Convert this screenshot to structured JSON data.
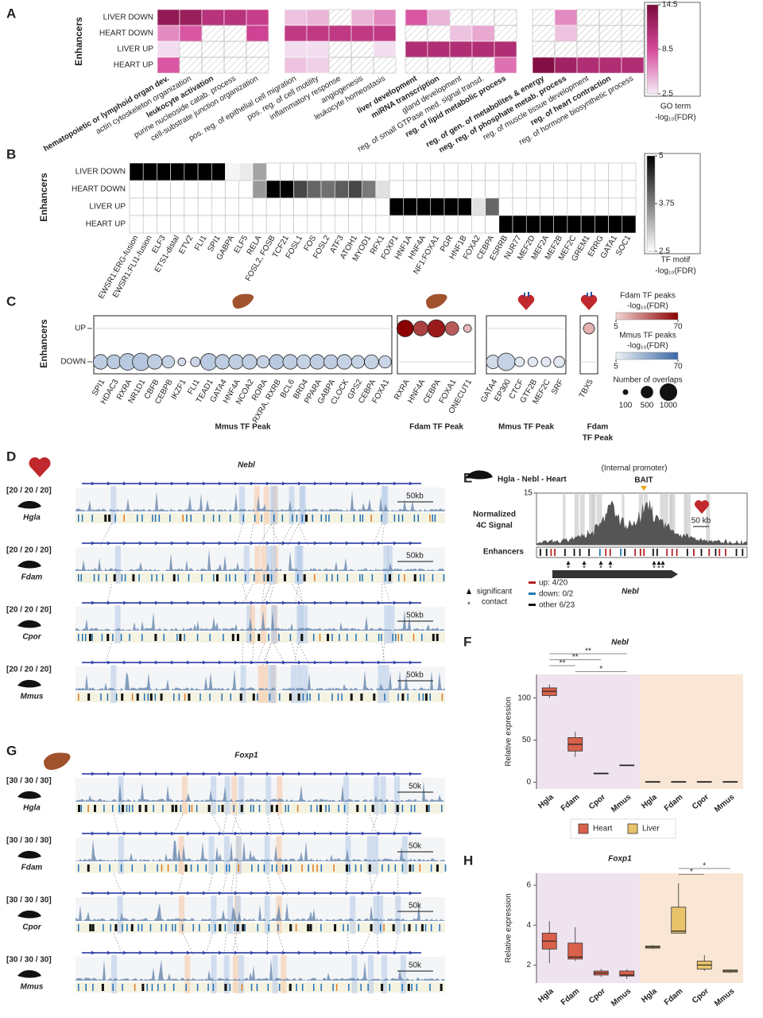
{
  "panel_labels": [
    "A",
    "B",
    "C",
    "D",
    "E",
    "F",
    "G",
    "H"
  ],
  "chart_data": [
    {
      "type": "heatmap",
      "y_label": "Enhancers",
      "rows": [
        "LIVER DOWN",
        "HEART DOWN",
        "LIVER UP",
        "HEART UP"
      ],
      "column_groups": [
        [
          "hematopoietic or lymphoid organ dev.",
          "actin cytoskeleton organization",
          "leukocyte activation",
          "purine nucleoside catab. process",
          "cell-substrate junction organization"
        ],
        [
          "pos. reg. of epithelial cell migration",
          "pos. reg. of cell motility",
          "inflammatory response",
          "angiogenesis",
          "leukocyte homeostasis"
        ],
        [
          "liver development",
          "miRNA transcription",
          "gland development",
          "reg. of small GTPase med. signal transd.",
          "reg. of lipid metabolic process"
        ],
        [
          "reg. of gen. of metabolites & energy",
          "neg. reg. of phosphate metab. process",
          "reg. of muscle tissue development",
          "reg. of heart contraction",
          "reg. of hormone biosynthetic process"
        ]
      ],
      "bold": [
        [
          true,
          false,
          true,
          false,
          false
        ],
        [
          false,
          false,
          false,
          false,
          false
        ],
        [
          true,
          true,
          false,
          false,
          true
        ],
        [
          true,
          true,
          false,
          true,
          false
        ]
      ],
      "values": [
        [
          13,
          12.5,
          10.5,
          10.5,
          9.5,
          4,
          4.5,
          null,
          4.5,
          6,
          8,
          4.5,
          null,
          null,
          null,
          null,
          6,
          null,
          null,
          null
        ],
        [
          6,
          8,
          null,
          null,
          9,
          10,
          10,
          10,
          10,
          10,
          null,
          null,
          4,
          5,
          null,
          null,
          4,
          null,
          null,
          null
        ],
        [
          3,
          null,
          null,
          null,
          null,
          3,
          3,
          null,
          null,
          3,
          11,
          11,
          11,
          11,
          11,
          null,
          null,
          null,
          null,
          null
        ],
        [
          8,
          null,
          null,
          null,
          null,
          4,
          3.5,
          null,
          null,
          null,
          null,
          null,
          null,
          null,
          7,
          14,
          12,
          11,
          11,
          11
        ]
      ],
      "colorbar": {
        "lim": [
          2.5,
          14.5
        ],
        "ticks": [
          14.5,
          8.5,
          2.5
        ],
        "colors": [
          "#f4ecf6",
          "#d6489b",
          "#7a0a3c"
        ],
        "label": [
          "GO term",
          "-log₁₀(FDR)"
        ]
      },
      "hatch_missing": true
    },
    {
      "type": "heatmap",
      "y_label": "Enhancers",
      "rows": [
        "LIVER DOWN",
        "HEART DOWN",
        "LIVER UP",
        "HEART UP"
      ],
      "column_groups": [
        [
          "EWSR1:ERG-fusion",
          "EWSR1:FLI1-fusion",
          "ELF3",
          "ETS1-distal",
          "ETV2",
          "FLI1",
          "SPI1",
          "GABPA",
          "ELF5",
          "RELA",
          "FOSL2, FOSB",
          "TCF21",
          "FOSL1",
          "FOS",
          "FOSL2",
          "ATF3",
          "ATOH1",
          "MYOD1",
          "RFX1",
          "FOXP1",
          "HNF1A",
          "HNF4A",
          "NF1:FOXA1",
          "PGR",
          "HNF1B",
          "FOXA2",
          "CEBPA",
          "ESRRB",
          "NUR77",
          "MEF2D",
          "MEF2A",
          "MEF2B",
          "MEF2C",
          "GREM1",
          "ERRG",
          "GATA1",
          "SOC1"
        ]
      ],
      "values": [
        [
          5,
          5,
          5,
          5,
          5,
          5,
          5,
          2.6,
          2.7,
          3.4,
          null,
          null,
          null,
          null,
          null,
          null,
          null,
          null,
          null,
          null,
          null,
          null,
          null,
          null,
          null,
          null,
          null,
          null,
          null,
          null,
          null,
          null,
          null,
          null,
          null,
          null,
          null
        ],
        [
          null,
          null,
          null,
          null,
          null,
          null,
          null,
          null,
          null,
          3.5,
          5,
          5,
          4.3,
          4,
          3.9,
          4.1,
          4.3,
          3.8,
          2.8,
          null,
          null,
          null,
          null,
          null,
          null,
          null,
          null,
          null,
          null,
          null,
          null,
          null,
          null,
          null,
          null,
          null,
          null
        ],
        [
          null,
          null,
          null,
          null,
          null,
          null,
          null,
          null,
          null,
          null,
          null,
          null,
          null,
          null,
          null,
          null,
          null,
          null,
          null,
          5,
          5,
          5,
          5,
          5,
          5,
          2.8,
          4,
          null,
          null,
          null,
          null,
          null,
          null,
          null,
          null,
          null,
          null
        ],
        [
          null,
          null,
          null,
          null,
          null,
          null,
          null,
          null,
          null,
          null,
          null,
          null,
          null,
          null,
          null,
          null,
          null,
          null,
          null,
          null,
          null,
          null,
          null,
          null,
          null,
          null,
          null,
          5,
          5,
          5,
          5,
          5,
          5,
          5,
          5,
          5,
          5
        ]
      ],
      "colorbar": {
        "lim": [
          2.5,
          5
        ],
        "ticks": [
          5,
          3.75,
          2.5
        ],
        "colors": [
          "#ffffff",
          "#000000"
        ],
        "label": [
          "TF motif",
          "-log₁₀(FDR)"
        ]
      },
      "hatch_missing": false
    },
    {
      "type": "bubble",
      "y_label": "Enhancers",
      "y_categories": [
        "UP",
        "DOWN"
      ],
      "groups": [
        {
          "title": [
            "Mmus TF Peak"
          ],
          "icon": "liver",
          "row": "DOWN",
          "colors": [
            "#eef2f7",
            "#3a66a6"
          ],
          "labels": [
            "SPI1",
            "HDAC3",
            "RXRA",
            "NR1D1",
            "CBFB",
            "CEBPB",
            "IKZF1",
            "FLI1",
            "TEAD1",
            "GATA4",
            "HNF4A",
            "NCOA2",
            "RORA",
            "RXRA, RXRB",
            "BCL6",
            "BRD4",
            "PPARA",
            "GABPA",
            "CLOCK",
            "GPS2",
            "CEBPA",
            "FOXA1"
          ],
          "fdr": [
            22,
            24,
            24,
            26,
            22,
            20,
            16,
            18,
            24,
            22,
            22,
            22,
            20,
            24,
            22,
            20,
            22,
            22,
            20,
            20,
            20,
            18
          ],
          "overlaps": [
            700,
            650,
            900,
            1000,
            700,
            500,
            200,
            300,
            900,
            700,
            700,
            700,
            500,
            700,
            700,
            650,
            700,
            650,
            700,
            550,
            650,
            500
          ]
        },
        {
          "title": [
            "Fdam TF Peak"
          ],
          "icon": "liver",
          "row": "UP",
          "colors": [
            "#f6d4d4",
            "#8b0000"
          ],
          "labels": [
            "RXRA",
            "HNF4A",
            "CEBPA",
            "FOXA1",
            "ONECUT1"
          ],
          "fdr": [
            70,
            50,
            62,
            42,
            14
          ],
          "overlaps": [
            900,
            700,
            1000,
            600,
            200
          ]
        },
        {
          "title": [
            "Mmus TF Peak"
          ],
          "icon": "heart",
          "row": "DOWN",
          "colors": [
            "#eef2f7",
            "#3a66a6"
          ],
          "labels": [
            "GATA4",
            "EP300",
            "CTCF",
            "GTF2B",
            "MEF2C",
            "SRF"
          ],
          "fdr": [
            16,
            20,
            10,
            10,
            10,
            10
          ],
          "overlaps": [
            600,
            1000,
            300,
            300,
            300,
            400
          ]
        },
        {
          "title": [
            "Fdam",
            "TF Peak"
          ],
          "icon": "heart",
          "row": "UP",
          "colors": [
            "#f6d4d4",
            "#8b0000"
          ],
          "labels": [
            "TBX5"
          ],
          "fdr": [
            16
          ],
          "overlaps": [
            400
          ]
        }
      ],
      "color_legends": [
        {
          "title": [
            "Fdam TF peaks",
            "-log₁₀(FDR)"
          ],
          "lim": [
            5,
            70
          ],
          "colors": [
            "#f6d4d4",
            "#8b0000"
          ]
        },
        {
          "title": [
            "Mmus TF peaks",
            "-log₁₀(FDR)"
          ],
          "lim": [
            5,
            70
          ],
          "colors": [
            "#eef2f7",
            "#3a66a6"
          ]
        }
      ],
      "size_legend": {
        "title": "Number of overlaps",
        "values": [
          100,
          500,
          1000
        ]
      }
    },
    {
      "type": "boxplot",
      "title": "Nebl",
      "y_label": "Relative expression",
      "categories": [
        "Hgla",
        "Fdam",
        "Cpor",
        "Mmus"
      ],
      "ylim": [
        -8,
        128
      ],
      "yticks": [
        0,
        50,
        100
      ],
      "series": [
        {
          "name": "Heart",
          "color": "#d9604a",
          "background": "#efe3f0",
          "min": [
            100,
            30,
            10,
            19.5
          ],
          "q1": [
            103,
            37,
            10,
            19.8
          ],
          "median": [
            108,
            45,
            10.5,
            20
          ],
          "q3": [
            112,
            53,
            10.8,
            20.5
          ],
          "max": [
            116,
            60,
            11,
            21
          ]
        },
        {
          "name": "Liver",
          "color": "#e8c36a",
          "background": "#f9e6d4",
          "min": [
            0,
            0,
            0,
            0
          ],
          "q1": [
            0.2,
            0.2,
            0.2,
            0.2
          ],
          "median": [
            0.5,
            0.5,
            0.5,
            0.5
          ],
          "q3": [
            0.8,
            0.8,
            0.8,
            0.8
          ],
          "max": [
            1,
            1,
            1,
            1
          ]
        }
      ],
      "significance": [
        "**",
        "**",
        "**",
        "*"
      ],
      "legend": true
    },
    {
      "type": "boxplot",
      "title": "Foxp1",
      "y_label": "Relative expression",
      "categories": [
        "Hgla",
        "Fdam",
        "Cpor",
        "Mmus"
      ],
      "ylim": [
        1.1,
        6.6
      ],
      "yticks": [
        2,
        4,
        6
      ],
      "series": [
        {
          "name": "Heart",
          "color": "#d9604a",
          "background": "#efe3f0",
          "min": [
            2.1,
            2.2,
            1.4,
            1.3
          ],
          "q1": [
            2.8,
            2.3,
            1.5,
            1.45
          ],
          "median": [
            3.2,
            2.4,
            1.6,
            1.5
          ],
          "q3": [
            3.6,
            3.1,
            1.7,
            1.7
          ],
          "max": [
            4.2,
            3.9,
            1.8,
            1.8
          ]
        },
        {
          "name": "Liver",
          "color": "#e8c36a",
          "background": "#f9e6d4",
          "min": [
            2.8,
            3.6,
            1.7,
            1.6
          ],
          "q1": [
            2.85,
            3.6,
            1.8,
            1.65
          ],
          "median": [
            2.9,
            3.7,
            2.0,
            1.7
          ],
          "q3": [
            2.95,
            4.9,
            2.2,
            1.75
          ],
          "max": [
            3.0,
            6.1,
            2.5,
            1.75
          ]
        }
      ],
      "significance": [
        "*",
        "*"
      ],
      "legend": false
    }
  ],
  "genome_panels": [
    {
      "title": "Nebl",
      "scale_bar": "50kb",
      "tracks": [
        {
          "species": "Hgla",
          "scale": "[20 / 20 / 20]"
        },
        {
          "species": "Fdam",
          "scale": "[20 / 20 / 20]"
        },
        {
          "species": "Cpor",
          "scale": "[20 / 20 / 20]"
        },
        {
          "species": "Mmus",
          "scale": "[20 / 20 / 20]"
        }
      ]
    },
    {
      "title": "Foxp1",
      "scale_bar": "50k",
      "tracks": [
        {
          "species": "Hgla",
          "scale": "[30 / 30 / 30]"
        },
        {
          "species": "Fdam",
          "scale": "[30 / 30 / 30]"
        },
        {
          "species": "Cpor",
          "scale": "[30 / 30 / 30]"
        },
        {
          "species": "Mmus",
          "scale": "[30 / 30 / 30]"
        }
      ]
    }
  ],
  "four_c": {
    "title": "Hgla - Nebl - Heart",
    "bait_note": "(Internal promoter)",
    "bait": "BAIT",
    "ylim": [
      0,
      15
    ],
    "yticks": [
      15
    ],
    "y_label": [
      "Normalized",
      "4C Signal"
    ],
    "track_label": "Enhancers",
    "scale_bar": "50 kb",
    "gene": "Nebl",
    "marker_label": [
      "significant",
      "contact"
    ],
    "legend": [
      {
        "label": "up: 4/20",
        "color": "#b22222"
      },
      {
        "label": "down: 0/2",
        "color": "#1f78b4"
      },
      {
        "label": "other 6/23",
        "color": "#111111"
      }
    ]
  }
}
